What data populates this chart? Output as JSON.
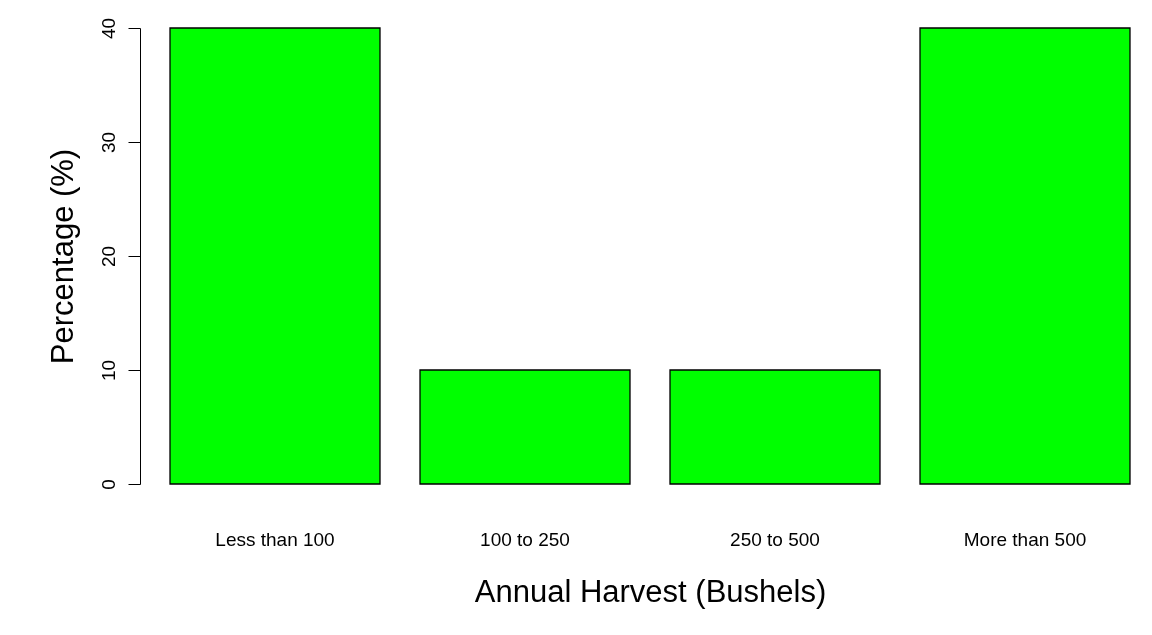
{
  "chart_data": {
    "type": "bar",
    "xlabel": "Annual Harvest (Bushels)",
    "ylabel": "Percentage (%)",
    "categories": [
      "Less than 100",
      "100  to 250",
      "250 to 500",
      "More than 500"
    ],
    "values": [
      40,
      10,
      10,
      40
    ],
    "color": "#00ff00",
    "ylim": [
      0,
      40
    ],
    "yticks": [
      0,
      10,
      20,
      30,
      40
    ]
  }
}
